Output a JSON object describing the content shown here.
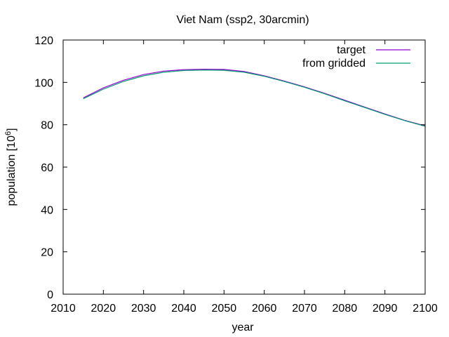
{
  "chart_data": {
    "type": "line",
    "title": "Viet Nam (ssp2, 30arcmin)",
    "xlabel": "year",
    "ylabel": "population [10",
    "ylabel_exponent": "6",
    "ylabel_suffix": "]",
    "xlim": [
      2010,
      2100
    ],
    "ylim": [
      0,
      120
    ],
    "xticks": [
      2010,
      2020,
      2030,
      2040,
      2050,
      2060,
      2070,
      2080,
      2090,
      2100
    ],
    "yticks": [
      0,
      20,
      40,
      60,
      80,
      100,
      120
    ],
    "grid": false,
    "legend_position": "top-right",
    "series": [
      {
        "name": "target",
        "color": "#9400d3",
        "x": [
          2015,
          2020,
          2025,
          2030,
          2035,
          2040,
          2045,
          2050,
          2055,
          2060,
          2065,
          2070,
          2075,
          2080,
          2085,
          2090,
          2095,
          2100
        ],
        "y": [
          92.7,
          97.4,
          101.0,
          103.7,
          105.3,
          106.0,
          106.2,
          106.1,
          105.1,
          103.1,
          100.6,
          97.9,
          94.8,
          91.6,
          88.3,
          85.1,
          82.0,
          79.5
        ]
      },
      {
        "name": "from gridded",
        "color": "#009e73",
        "x": [
          2015,
          2020,
          2025,
          2030,
          2035,
          2040,
          2045,
          2050,
          2055,
          2060,
          2065,
          2070,
          2075,
          2080,
          2085,
          2090,
          2095,
          2100
        ],
        "y": [
          92.3,
          96.8,
          100.4,
          103.1,
          104.8,
          105.6,
          105.8,
          105.7,
          104.8,
          102.9,
          100.4,
          97.7,
          94.6,
          91.3,
          88.1,
          84.9,
          81.9,
          79.3
        ]
      }
    ]
  }
}
